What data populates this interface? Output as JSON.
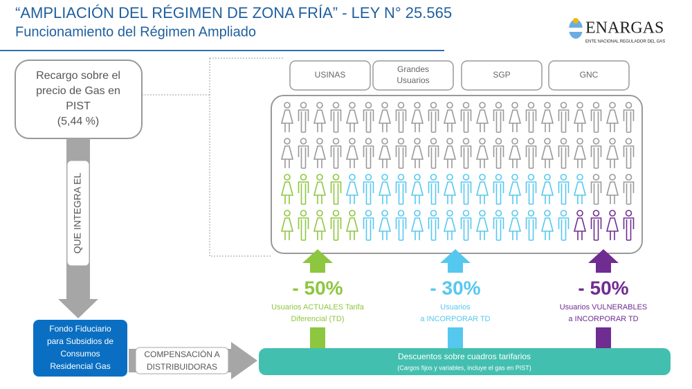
{
  "header": {
    "title": "“AMPLIACIÓN DEL RÉGIMEN DE ZONA FRÍA” - LEY N° 25.565",
    "subtitle": "Funcionamiento del Régimen Ampliado"
  },
  "logo": {
    "name": "ENARGAS",
    "tagline": "ENTE NACIONAL REGULADOR DEL GAS"
  },
  "surcharge_box": {
    "lines": [
      "Recargo sobre el",
      "precio de Gas en",
      "PIST",
      "(5,44 %)"
    ]
  },
  "flow_label": "QUE INTEGRA EL",
  "contributors": [
    {
      "lines": [
        "USINAS"
      ]
    },
    {
      "lines": [
        "Grandes",
        "Usuarios"
      ]
    },
    {
      "lines": [
        "SGP"
      ]
    },
    {
      "lines": [
        "GNC"
      ]
    }
  ],
  "discounts": [
    {
      "percent": "- 50%",
      "lines": [
        "Usuarios ACTUALES Tarifa",
        "Diferencial (TD)"
      ],
      "color": "#8dc63f"
    },
    {
      "percent": "- 30%",
      "lines": [
        "Usuarios",
        "a INCORPORAR TD"
      ],
      "color": "#55c8ef"
    },
    {
      "percent": "- 50%",
      "lines": [
        "Usuarios VULNERABLES",
        "a INCORPORAR TD"
      ],
      "color": "#6f2c91"
    }
  ],
  "fund_box": {
    "lines": [
      "Fondo Fiduciario",
      "para Subsidios de",
      "Consumos",
      "Residencial Gas"
    ]
  },
  "compensation_box": {
    "lines": [
      "COMPENSACIÓN A",
      "DISTRIBUIDORAS"
    ]
  },
  "discount_bar": {
    "title": "Descuentos sobre cuadros tarifarios",
    "note": "(Cargos fijos y variables, incluye el gas en PIST)"
  }
}
